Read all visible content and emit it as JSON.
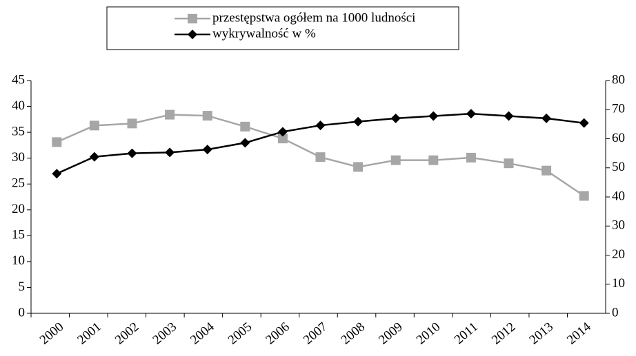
{
  "chart_data": {
    "type": "line",
    "categories": [
      "2000",
      "2001",
      "2002",
      "2003",
      "2004",
      "2005",
      "2006",
      "2007",
      "2008",
      "2009",
      "2010",
      "2011",
      "2012",
      "2013",
      "2014"
    ],
    "series": [
      {
        "name": "przestępstwa ogółem na 1000 ludności",
        "color": "#a6a6a6",
        "marker": "square",
        "axis": "y",
        "values": [
          33.1,
          36.3,
          36.7,
          38.4,
          38.2,
          36.1,
          33.8,
          30.2,
          28.3,
          29.6,
          29.6,
          30.1,
          29.0,
          27.6,
          22.7
        ]
      },
      {
        "name": "wykrywalność w %",
        "color": "#000000",
        "marker": "diamond",
        "axis": "y2",
        "values": [
          48,
          53.8,
          55,
          55.3,
          56.3,
          58.6,
          62.4,
          64.6,
          65.9,
          67,
          67.8,
          68.6,
          67.8,
          67,
          65.4
        ]
      }
    ],
    "ylim": [
      0,
      45
    ],
    "yticks": [
      0,
      5,
      10,
      15,
      20,
      25,
      30,
      35,
      40,
      45
    ],
    "y2lim": [
      0,
      80
    ],
    "y2ticks": [
      0,
      10,
      20,
      30,
      40,
      50,
      60,
      70,
      80
    ],
    "grid": false
  }
}
